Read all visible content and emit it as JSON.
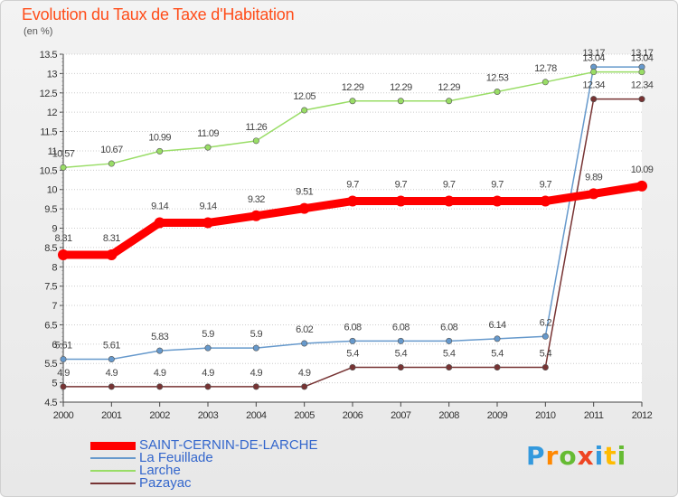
{
  "header": {
    "title": "Evolution du Taux de Taxe d'Habitation",
    "unit": "(en %)"
  },
  "brand": {
    "text": "Proxiti"
  },
  "colors": {
    "title": "#ff4d1a",
    "grid": "#cccccc",
    "axis": "#444444",
    "legend_text": "#3366cc"
  },
  "chart_data": {
    "type": "line",
    "x": [
      "2000",
      "2001",
      "2002",
      "2003",
      "2004",
      "2005",
      "2006",
      "2007",
      "2008",
      "2009",
      "2010",
      "2011",
      "2012"
    ],
    "ylim": [
      4.5,
      13.5
    ],
    "yticks": [
      "4.5",
      "5",
      "5.5",
      "6",
      "6.5",
      "7",
      "7.5",
      "8",
      "8.5",
      "9",
      "9.5",
      "10",
      "10.5",
      "11",
      "11.5",
      "12",
      "12.5",
      "13",
      "13.5"
    ],
    "grid": "horizontal",
    "legend_position": "bottom-left",
    "series": [
      {
        "name": "SAINT-CERNIN-DE-LARCHE",
        "color": "#ff0000",
        "values": [
          8.31,
          8.31,
          9.14,
          9.14,
          9.32,
          9.51,
          9.7,
          9.7,
          9.7,
          9.7,
          9.7,
          9.89,
          10.09
        ],
        "labels": [
          "8.31",
          "8.31",
          "9.14",
          "9.14",
          "9.32",
          "9.51",
          "9.7",
          "9.7",
          "9.7",
          "9.7",
          "9.7",
          "9.89",
          "10.09"
        ]
      },
      {
        "name": "La Feuillade",
        "color": "#6699cc",
        "values": [
          5.61,
          5.61,
          5.83,
          5.9,
          5.9,
          6.02,
          6.08,
          6.08,
          6.08,
          6.14,
          6.2,
          13.17,
          13.17
        ],
        "labels": [
          "5.61",
          "5.61",
          "5.83",
          "5.9",
          "5.9",
          "6.02",
          "6.08",
          "6.08",
          "6.08",
          "6.14",
          "6.2",
          "13.17",
          "13.17"
        ]
      },
      {
        "name": "Larche",
        "color": "#99dd66",
        "values": [
          10.57,
          10.67,
          10.99,
          11.09,
          11.26,
          12.05,
          12.29,
          12.29,
          12.29,
          12.53,
          12.78,
          13.04,
          13.04
        ],
        "labels": [
          "10.57",
          "10.67",
          "10.99",
          "11.09",
          "11.26",
          "12.05",
          "12.29",
          "12.29",
          "12.29",
          "12.53",
          "12.78",
          "13.04",
          "13.04"
        ]
      },
      {
        "name": "Pazayac",
        "color": "#773333",
        "values": [
          4.9,
          4.9,
          4.9,
          4.9,
          4.9,
          4.9,
          5.4,
          5.4,
          5.4,
          5.4,
          5.4,
          12.34,
          12.34
        ],
        "labels": [
          "4.9",
          "4.9",
          "4.9",
          "4.9",
          "4.9",
          "4.9",
          "5.4",
          "5.4",
          "5.4",
          "5.4",
          "5.4",
          "12.34",
          "12.34"
        ]
      }
    ]
  }
}
